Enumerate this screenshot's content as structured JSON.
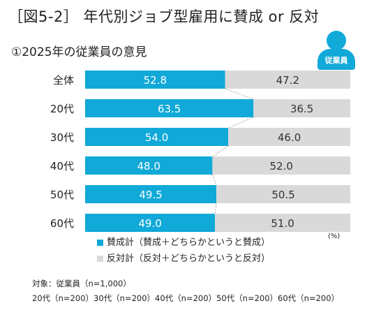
{
  "header": {
    "title": "［図5-2］ 年代別ジョブ型雇用に賛成 or 反対",
    "subtitle": "①2025年の従業員の意見",
    "badge_label": "従業員"
  },
  "colors": {
    "agree": "#10a9d8",
    "disagree": "#d9d9d9",
    "agree_text": "#ffffff",
    "disagree_text": "#333333",
    "badge": "#10a9d8"
  },
  "chart_data": {
    "type": "bar",
    "orientation": "horizontal",
    "stacked": true,
    "percent_stacked": true,
    "categories": [
      "全体",
      "20代",
      "30代",
      "40代",
      "50代",
      "60代"
    ],
    "series": [
      {
        "name": "賛成計（賛成＋どちらかというと賛成）",
        "values": [
          52.8,
          63.5,
          54.0,
          48.0,
          49.5,
          49.0
        ],
        "labels": [
          "52.8",
          "63.5",
          "54.0",
          "48.0",
          "49.5",
          "49.0"
        ]
      },
      {
        "name": "反対計（反対＋どちらかというと反対）",
        "values": [
          47.2,
          36.5,
          46.0,
          52.0,
          50.5,
          51.0
        ],
        "labels": [
          "47.2",
          "36.5",
          "46.0",
          "52.0",
          "50.5",
          "51.0"
        ]
      }
    ],
    "xlim": [
      0,
      100
    ],
    "unit": "(%)",
    "legend_position": "bottom",
    "grid": false,
    "connector_lines": true
  },
  "notes": {
    "line1": "対象：従業員（n=1,000）",
    "line2": "20代（n=200）30代（n=200）40代（n=200）50代（n=200）60代（n=200）"
  }
}
